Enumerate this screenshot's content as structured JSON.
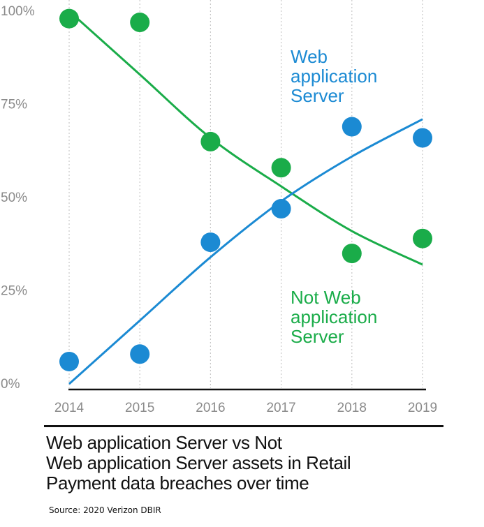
{
  "chart_data": {
    "type": "scatter",
    "x": [
      "2014",
      "2015",
      "2016",
      "2017",
      "2018",
      "2019"
    ],
    "y_ticks": [
      "100%",
      "75%",
      "50%",
      "25%",
      "0%"
    ],
    "ylim": [
      0,
      100
    ],
    "grid": "vertical dotted",
    "series": [
      {
        "name": "Not Web application Server",
        "label_lines": [
          "Not Web",
          "application",
          "Server"
        ],
        "color": "#1aac49",
        "values": [
          98,
          97,
          65,
          58,
          35,
          39
        ],
        "trend": [
          100,
          83,
          66,
          53,
          41,
          32
        ]
      },
      {
        "name": "Web application Server",
        "label_lines": [
          "Web",
          "application",
          "Server"
        ],
        "color": "#1b8ad3",
        "values": [
          6,
          8,
          38,
          47,
          69,
          66
        ],
        "trend": [
          0,
          17,
          34,
          49,
          61,
          71
        ]
      }
    ]
  },
  "caption": {
    "lines": [
      "Web application Server vs Not",
      "Web application Server assets in Retail",
      "Payment data breaches over time"
    ]
  },
  "source": "Source: 2020 Verizon DBIR"
}
